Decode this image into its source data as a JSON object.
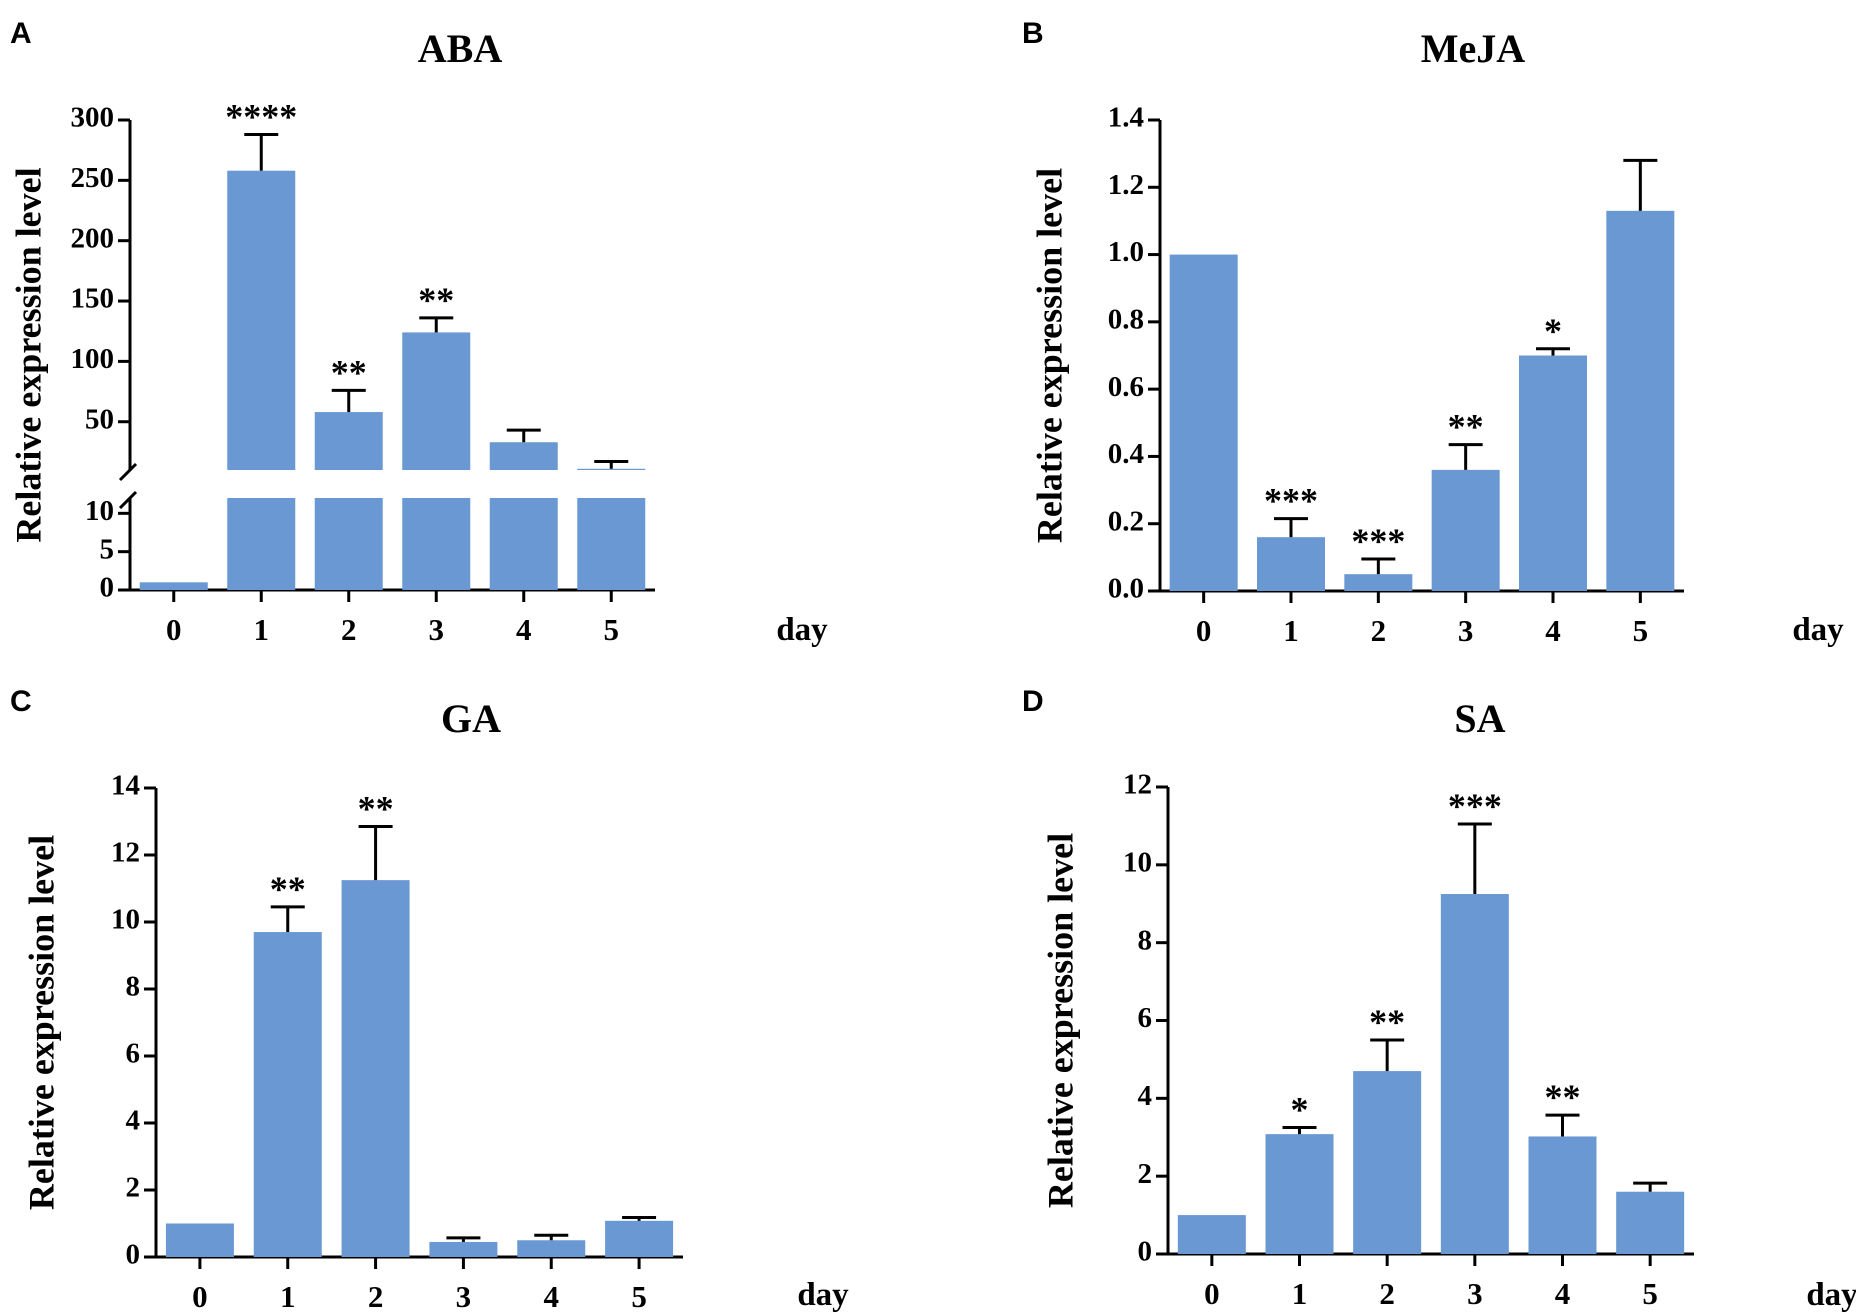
{
  "colors": {
    "bar": "#6a98d2",
    "axis": "#000000"
  },
  "chart_data": [
    {
      "panel": "A",
      "type": "bar",
      "title": "ABA",
      "xlabel": "day",
      "ylabel": "Relative expression level",
      "categories": [
        "0",
        "1",
        "2",
        "3",
        "4",
        "5"
      ],
      "values": [
        1,
        258,
        58,
        124,
        33,
        11
      ],
      "errors": [
        0,
        30,
        18,
        12,
        10,
        6
      ],
      "significance": [
        "",
        "****",
        "**",
        "**",
        "",
        ""
      ],
      "broken_axis": {
        "lower": {
          "range": [
            0,
            12
          ],
          "ticks": [
            0,
            5,
            10
          ],
          "tick_labels": [
            "0",
            "5",
            "10"
          ]
        },
        "upper": {
          "range": [
            10,
            300
          ],
          "ticks": [
            50,
            100,
            150,
            200,
            250,
            300
          ],
          "tick_labels": [
            "50",
            "100",
            "150",
            "200",
            "250",
            "300"
          ]
        }
      }
    },
    {
      "panel": "B",
      "type": "bar",
      "title": "MeJA",
      "xlabel": "day",
      "ylabel": "Relative expression level",
      "categories": [
        "0",
        "1",
        "2",
        "3",
        "4",
        "5"
      ],
      "values": [
        1.0,
        0.16,
        0.05,
        0.36,
        0.7,
        1.13
      ],
      "errors": [
        0,
        0.055,
        0.045,
        0.075,
        0.02,
        0.15
      ],
      "significance": [
        "",
        "***",
        "***",
        "**",
        "*",
        ""
      ],
      "ylim": [
        0,
        1.4
      ],
      "yticks": [
        0,
        0.2,
        0.4,
        0.6,
        0.8,
        1.0,
        1.2,
        1.4
      ],
      "ytick_labels": [
        "0.0",
        "0.2",
        "0.4",
        "0.6",
        "0.8",
        "1.0",
        "1.2",
        "1.4"
      ]
    },
    {
      "panel": "C",
      "type": "bar",
      "title": "GA",
      "xlabel": "day",
      "ylabel": "Relative expression level",
      "categories": [
        "0",
        "1",
        "2",
        "3",
        "4",
        "5"
      ],
      "values": [
        1.0,
        9.7,
        11.25,
        0.45,
        0.5,
        1.08
      ],
      "errors": [
        0,
        0.75,
        1.6,
        0.12,
        0.15,
        0.1
      ],
      "significance": [
        "",
        "**",
        "**",
        "",
        "",
        ""
      ],
      "ylim": [
        0,
        14
      ],
      "yticks": [
        0,
        2,
        4,
        6,
        8,
        10,
        12,
        14
      ],
      "ytick_labels": [
        "0",
        "2",
        "4",
        "6",
        "8",
        "10",
        "12",
        "14"
      ]
    },
    {
      "panel": "D",
      "type": "bar",
      "title": "SA",
      "xlabel": "day",
      "ylabel": "Relative expression level",
      "categories": [
        "0",
        "1",
        "2",
        "3",
        "4",
        "5"
      ],
      "values": [
        1.0,
        3.08,
        4.7,
        9.25,
        3.02,
        1.6
      ],
      "errors": [
        0,
        0.17,
        0.8,
        1.8,
        0.55,
        0.22
      ],
      "significance": [
        "",
        "*",
        "**",
        "***",
        "**",
        ""
      ],
      "ylim": [
        0,
        12
      ],
      "yticks": [
        0,
        2,
        4,
        6,
        8,
        10,
        12
      ],
      "ytick_labels": [
        "0",
        "2",
        "4",
        "6",
        "8",
        "10",
        "12"
      ]
    }
  ]
}
